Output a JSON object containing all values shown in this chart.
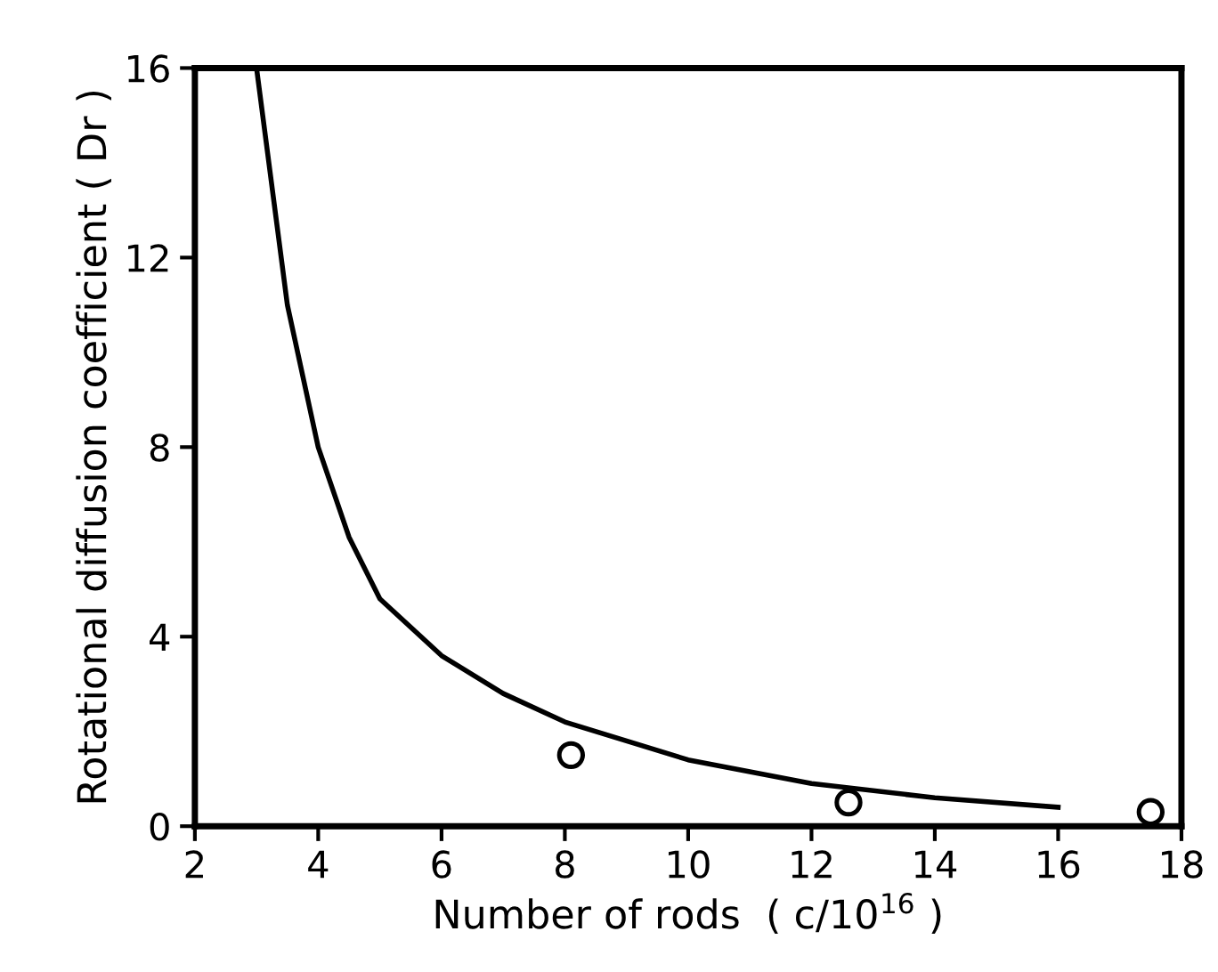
{
  "chart_data": {
    "type": "scatter",
    "xlabel": "Number of rods  ( c/10$^{16}$ )",
    "ylabel": "Rotational diffusion coefficient ( Dr )",
    "xlim": [
      2,
      18
    ],
    "ylim": [
      0,
      16
    ],
    "xticks": [
      2,
      4,
      6,
      8,
      10,
      12,
      14,
      16,
      18
    ],
    "yticks": [
      0,
      4,
      8,
      12,
      16
    ],
    "grid": false,
    "legend": false,
    "series": [
      {
        "type": "line",
        "color": "#000000",
        "marker": "none",
        "line_style": "solid",
        "x": [
          3,
          3.5,
          4,
          4.5,
          5,
          6,
          7,
          8,
          10,
          12,
          14,
          16
        ],
        "values": [
          16,
          11,
          8,
          6.1,
          4.8,
          3.6,
          2.8,
          2.2,
          1.4,
          0.9,
          0.6,
          0.4
        ]
      },
      {
        "color": "#000000",
        "marker": "circle",
        "x": [
          8.1,
          12.6,
          17.5
        ],
        "values": [
          1.5,
          0.5,
          0.3
        ]
      }
    ]
  }
}
